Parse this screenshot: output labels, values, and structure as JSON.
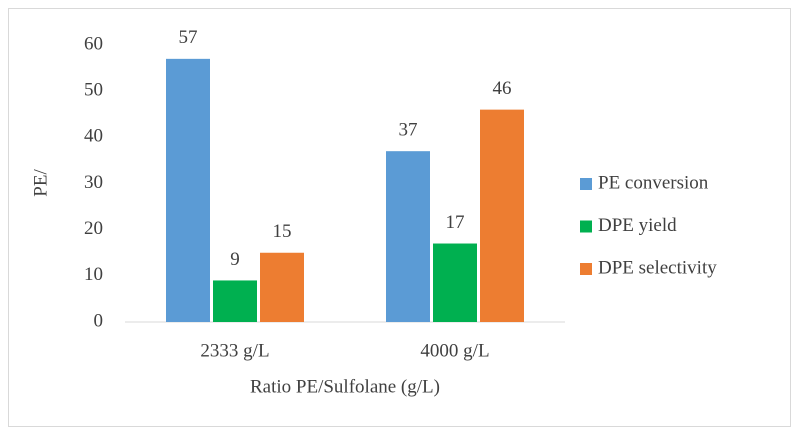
{
  "chart_data": {
    "type": "bar",
    "categories": [
      "2333 g/L",
      "4000 g/L"
    ],
    "series": [
      {
        "name": "PE conversion",
        "color": "#5b9bd5",
        "values": [
          57,
          37
        ]
      },
      {
        "name": "DPE yield",
        "color": "#00b050",
        "values": [
          9,
          17
        ]
      },
      {
        "name": "DPE selectivity",
        "color": "#ed7d31",
        "values": [
          15,
          46
        ]
      }
    ],
    "y_label": "PE/",
    "x_label": "Ratio PE/Sulfolane (g/L)",
    "ylim": [
      0,
      60
    ],
    "yticks": [
      0,
      10,
      20,
      30,
      40,
      50,
      60
    ],
    "grid": false,
    "legend": "right"
  }
}
